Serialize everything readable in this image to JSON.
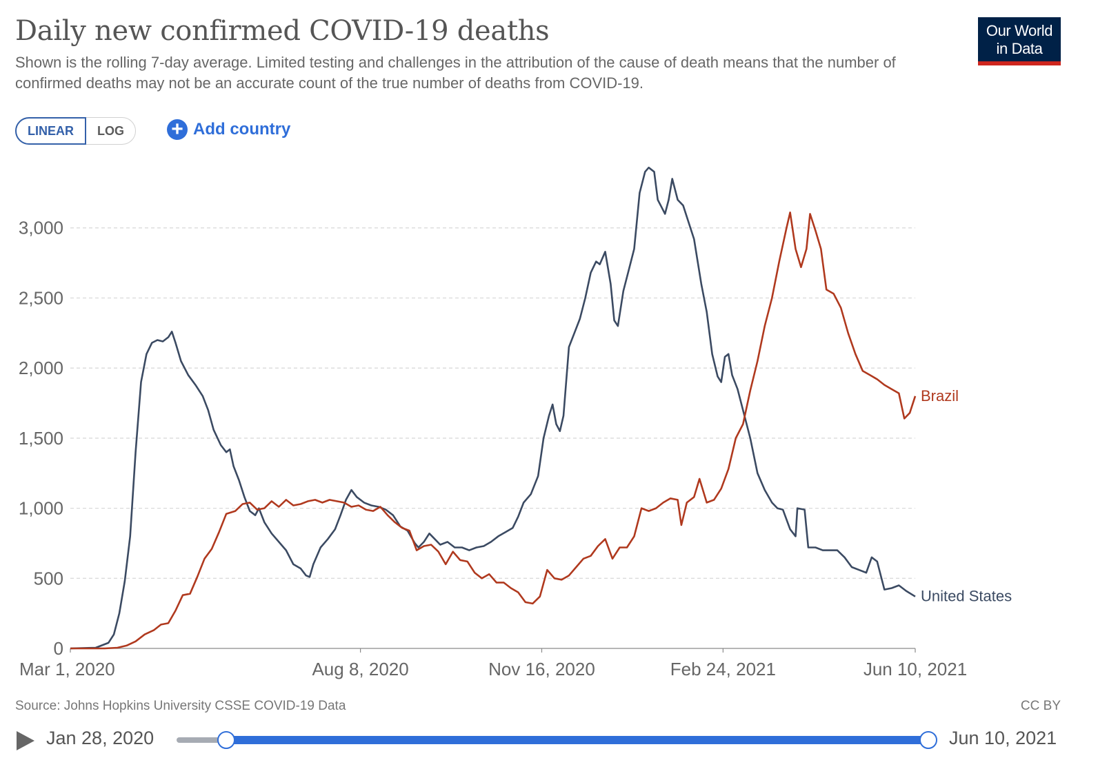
{
  "header": {
    "title": "Daily new confirmed COVID-19 deaths",
    "subtitle": "Shown is the rolling 7-day average. Limited testing and challenges in the attribution of the cause of death means that the number of confirmed deaths may not be an accurate count of the true number of deaths from COVID-19.",
    "logo_line1": "Our World",
    "logo_line2": "in Data",
    "logo_colors": {
      "background": "#002147",
      "accent": "#ce261e"
    }
  },
  "controls": {
    "scale_options": [
      "LINEAR",
      "LOG"
    ],
    "scale_selected": "LINEAR",
    "add_country_label": "Add country",
    "add_country_icon": "plus-circle-icon"
  },
  "chart_data": {
    "type": "line",
    "title": "Daily new confirmed COVID-19 deaths",
    "xlabel": "",
    "ylabel": "",
    "ylim": [
      0,
      3500
    ],
    "y_ticks": [
      0,
      500,
      1000,
      1500,
      2000,
      2500,
      3000
    ],
    "y_tick_labels": [
      "0",
      "500",
      "1,000",
      "1,500",
      "2,000",
      "2,500",
      "3,000"
    ],
    "x_range": [
      "2020-03-01",
      "2021-06-10"
    ],
    "x_tick_labels": [
      "Mar 1, 2020",
      "Aug 8, 2020",
      "Nov 16, 2020",
      "Feb 24, 2021",
      "Jun 10, 2021"
    ],
    "x_tick_dates": [
      "2020-03-01",
      "2020-08-08",
      "2020-11-16",
      "2021-02-24",
      "2021-06-10"
    ],
    "grid": "horizontal-dashed",
    "legend": "line-end-labels",
    "series": [
      {
        "name": "United States",
        "color": "#3b4a62",
        "points": [
          [
            "2020-03-01",
            0
          ],
          [
            "2020-03-15",
            5
          ],
          [
            "2020-03-22",
            40
          ],
          [
            "2020-03-25",
            100
          ],
          [
            "2020-03-28",
            250
          ],
          [
            "2020-03-31",
            480
          ],
          [
            "2020-04-03",
            800
          ],
          [
            "2020-04-06",
            1400
          ],
          [
            "2020-04-09",
            1900
          ],
          [
            "2020-04-12",
            2100
          ],
          [
            "2020-04-15",
            2180
          ],
          [
            "2020-04-18",
            2200
          ],
          [
            "2020-04-21",
            2190
          ],
          [
            "2020-04-24",
            2220
          ],
          [
            "2020-04-26",
            2260
          ],
          [
            "2020-04-28",
            2180
          ],
          [
            "2020-05-01",
            2050
          ],
          [
            "2020-05-05",
            1950
          ],
          [
            "2020-05-09",
            1880
          ],
          [
            "2020-05-13",
            1800
          ],
          [
            "2020-05-16",
            1700
          ],
          [
            "2020-05-19",
            1560
          ],
          [
            "2020-05-23",
            1450
          ],
          [
            "2020-05-26",
            1400
          ],
          [
            "2020-05-28",
            1420
          ],
          [
            "2020-05-30",
            1300
          ],
          [
            "2020-06-02",
            1200
          ],
          [
            "2020-06-05",
            1080
          ],
          [
            "2020-06-08",
            980
          ],
          [
            "2020-06-11",
            950
          ],
          [
            "2020-06-13",
            1000
          ],
          [
            "2020-06-16",
            900
          ],
          [
            "2020-06-20",
            820
          ],
          [
            "2020-06-24",
            760
          ],
          [
            "2020-06-28",
            700
          ],
          [
            "2020-07-02",
            600
          ],
          [
            "2020-07-06",
            570
          ],
          [
            "2020-07-09",
            520
          ],
          [
            "2020-07-11",
            510
          ],
          [
            "2020-07-13",
            600
          ],
          [
            "2020-07-17",
            720
          ],
          [
            "2020-07-21",
            780
          ],
          [
            "2020-07-25",
            850
          ],
          [
            "2020-07-28",
            950
          ],
          [
            "2020-07-31",
            1060
          ],
          [
            "2020-08-03",
            1130
          ],
          [
            "2020-08-06",
            1080
          ],
          [
            "2020-08-10",
            1040
          ],
          [
            "2020-08-14",
            1020
          ],
          [
            "2020-08-18",
            1010
          ],
          [
            "2020-08-22",
            990
          ],
          [
            "2020-08-26",
            950
          ],
          [
            "2020-08-30",
            870
          ],
          [
            "2020-09-03",
            840
          ],
          [
            "2020-09-07",
            750
          ],
          [
            "2020-09-09",
            720
          ],
          [
            "2020-09-12",
            760
          ],
          [
            "2020-09-15",
            820
          ],
          [
            "2020-09-18",
            780
          ],
          [
            "2020-09-21",
            740
          ],
          [
            "2020-09-25",
            760
          ],
          [
            "2020-09-29",
            720
          ],
          [
            "2020-10-03",
            720
          ],
          [
            "2020-10-07",
            700
          ],
          [
            "2020-10-11",
            720
          ],
          [
            "2020-10-15",
            730
          ],
          [
            "2020-10-19",
            760
          ],
          [
            "2020-10-23",
            800
          ],
          [
            "2020-10-27",
            830
          ],
          [
            "2020-10-31",
            860
          ],
          [
            "2020-11-03",
            940
          ],
          [
            "2020-11-06",
            1040
          ],
          [
            "2020-11-10",
            1100
          ],
          [
            "2020-11-14",
            1230
          ],
          [
            "2020-11-17",
            1500
          ],
          [
            "2020-11-20",
            1660
          ],
          [
            "2020-11-22",
            1740
          ],
          [
            "2020-11-24",
            1600
          ],
          [
            "2020-11-26",
            1550
          ],
          [
            "2020-11-28",
            1660
          ],
          [
            "2020-12-01",
            2150
          ],
          [
            "2020-12-04",
            2250
          ],
          [
            "2020-12-07",
            2350
          ],
          [
            "2020-12-10",
            2500
          ],
          [
            "2020-12-13",
            2680
          ],
          [
            "2020-12-16",
            2760
          ],
          [
            "2020-12-18",
            2740
          ],
          [
            "2020-12-21",
            2830
          ],
          [
            "2020-12-24",
            2600
          ],
          [
            "2020-12-26",
            2340
          ],
          [
            "2020-12-28",
            2300
          ],
          [
            "2020-12-31",
            2550
          ],
          [
            "2021-01-03",
            2700
          ],
          [
            "2021-01-06",
            2850
          ],
          [
            "2021-01-09",
            3250
          ],
          [
            "2021-01-12",
            3400
          ],
          [
            "2021-01-14",
            3430
          ],
          [
            "2021-01-17",
            3400
          ],
          [
            "2021-01-19",
            3200
          ],
          [
            "2021-01-21",
            3150
          ],
          [
            "2021-01-23",
            3100
          ],
          [
            "2021-01-25",
            3200
          ],
          [
            "2021-01-27",
            3350
          ],
          [
            "2021-01-30",
            3200
          ],
          [
            "2021-02-02",
            3160
          ],
          [
            "2021-02-05",
            3040
          ],
          [
            "2021-02-08",
            2920
          ],
          [
            "2021-02-12",
            2600
          ],
          [
            "2021-02-15",
            2400
          ],
          [
            "2021-02-18",
            2100
          ],
          [
            "2021-02-21",
            1940
          ],
          [
            "2021-02-23",
            1900
          ],
          [
            "2021-02-25",
            2080
          ],
          [
            "2021-02-27",
            2100
          ],
          [
            "2021-03-01",
            1950
          ],
          [
            "2021-03-04",
            1850
          ],
          [
            "2021-03-08",
            1650
          ],
          [
            "2021-03-11",
            1500
          ],
          [
            "2021-03-15",
            1250
          ],
          [
            "2021-03-19",
            1130
          ],
          [
            "2021-03-23",
            1040
          ],
          [
            "2021-03-26",
            1000
          ],
          [
            "2021-03-29",
            990
          ],
          [
            "2021-04-02",
            850
          ],
          [
            "2021-04-05",
            800
          ],
          [
            "2021-04-06",
            1000
          ],
          [
            "2021-04-10",
            990
          ],
          [
            "2021-04-12",
            720
          ],
          [
            "2021-04-16",
            720
          ],
          [
            "2021-04-20",
            700
          ],
          [
            "2021-04-24",
            700
          ],
          [
            "2021-04-28",
            700
          ],
          [
            "2021-05-02",
            650
          ],
          [
            "2021-05-06",
            580
          ],
          [
            "2021-05-10",
            560
          ],
          [
            "2021-05-14",
            540
          ],
          [
            "2021-05-17",
            650
          ],
          [
            "2021-05-20",
            620
          ],
          [
            "2021-05-24",
            420
          ],
          [
            "2021-05-28",
            430
          ],
          [
            "2021-06-01",
            450
          ],
          [
            "2021-06-05",
            410
          ],
          [
            "2021-06-10",
            370
          ]
        ]
      },
      {
        "name": "Brazil",
        "color": "#b0391e",
        "points": [
          [
            "2020-03-01",
            0
          ],
          [
            "2020-03-20",
            0
          ],
          [
            "2020-03-27",
            5
          ],
          [
            "2020-04-01",
            20
          ],
          [
            "2020-04-06",
            50
          ],
          [
            "2020-04-11",
            100
          ],
          [
            "2020-04-16",
            130
          ],
          [
            "2020-04-20",
            170
          ],
          [
            "2020-04-24",
            180
          ],
          [
            "2020-04-28",
            270
          ],
          [
            "2020-05-02",
            380
          ],
          [
            "2020-05-06",
            390
          ],
          [
            "2020-05-10",
            510
          ],
          [
            "2020-05-14",
            640
          ],
          [
            "2020-05-18",
            710
          ],
          [
            "2020-05-22",
            830
          ],
          [
            "2020-05-26",
            960
          ],
          [
            "2020-05-31",
            980
          ],
          [
            "2020-06-04",
            1030
          ],
          [
            "2020-06-08",
            1040
          ],
          [
            "2020-06-12",
            990
          ],
          [
            "2020-06-16",
            1000
          ],
          [
            "2020-06-20",
            1050
          ],
          [
            "2020-06-24",
            1010
          ],
          [
            "2020-06-28",
            1060
          ],
          [
            "2020-07-02",
            1020
          ],
          [
            "2020-07-06",
            1030
          ],
          [
            "2020-07-10",
            1050
          ],
          [
            "2020-07-14",
            1060
          ],
          [
            "2020-07-18",
            1040
          ],
          [
            "2020-07-22",
            1060
          ],
          [
            "2020-07-26",
            1050
          ],
          [
            "2020-07-30",
            1040
          ],
          [
            "2020-08-03",
            1010
          ],
          [
            "2020-08-07",
            1020
          ],
          [
            "2020-08-11",
            990
          ],
          [
            "2020-08-15",
            980
          ],
          [
            "2020-08-19",
            1010
          ],
          [
            "2020-08-23",
            950
          ],
          [
            "2020-08-27",
            900
          ],
          [
            "2020-08-31",
            860
          ],
          [
            "2020-09-04",
            840
          ],
          [
            "2020-09-08",
            700
          ],
          [
            "2020-09-12",
            730
          ],
          [
            "2020-09-16",
            740
          ],
          [
            "2020-09-20",
            690
          ],
          [
            "2020-09-24",
            600
          ],
          [
            "2020-09-28",
            690
          ],
          [
            "2020-10-02",
            630
          ],
          [
            "2020-10-06",
            620
          ],
          [
            "2020-10-10",
            540
          ],
          [
            "2020-10-14",
            500
          ],
          [
            "2020-10-18",
            530
          ],
          [
            "2020-10-22",
            470
          ],
          [
            "2020-10-26",
            470
          ],
          [
            "2020-10-30",
            430
          ],
          [
            "2020-11-03",
            400
          ],
          [
            "2020-11-07",
            330
          ],
          [
            "2020-11-11",
            320
          ],
          [
            "2020-11-15",
            370
          ],
          [
            "2020-11-19",
            560
          ],
          [
            "2020-11-23",
            500
          ],
          [
            "2020-11-27",
            490
          ],
          [
            "2020-12-01",
            520
          ],
          [
            "2020-12-05",
            580
          ],
          [
            "2020-12-09",
            640
          ],
          [
            "2020-12-13",
            660
          ],
          [
            "2020-12-17",
            730
          ],
          [
            "2020-12-21",
            780
          ],
          [
            "2020-12-25",
            640
          ],
          [
            "2020-12-29",
            720
          ],
          [
            "2021-01-02",
            720
          ],
          [
            "2021-01-06",
            800
          ],
          [
            "2021-01-10",
            1000
          ],
          [
            "2021-01-14",
            980
          ],
          [
            "2021-01-18",
            1000
          ],
          [
            "2021-01-22",
            1040
          ],
          [
            "2021-01-26",
            1070
          ],
          [
            "2021-01-30",
            1060
          ],
          [
            "2021-02-01",
            880
          ],
          [
            "2021-02-04",
            1040
          ],
          [
            "2021-02-08",
            1080
          ],
          [
            "2021-02-11",
            1210
          ],
          [
            "2021-02-15",
            1040
          ],
          [
            "2021-02-19",
            1060
          ],
          [
            "2021-02-23",
            1140
          ],
          [
            "2021-02-27",
            1280
          ],
          [
            "2021-03-03",
            1500
          ],
          [
            "2021-03-07",
            1600
          ],
          [
            "2021-03-11",
            1840
          ],
          [
            "2021-03-15",
            2050
          ],
          [
            "2021-03-19",
            2300
          ],
          [
            "2021-03-23",
            2500
          ],
          [
            "2021-03-27",
            2760
          ],
          [
            "2021-03-31",
            3000
          ],
          [
            "2021-04-02",
            3110
          ],
          [
            "2021-04-05",
            2850
          ],
          [
            "2021-04-08",
            2720
          ],
          [
            "2021-04-11",
            2850
          ],
          [
            "2021-04-13",
            3100
          ],
          [
            "2021-04-16",
            2980
          ],
          [
            "2021-04-19",
            2850
          ],
          [
            "2021-04-22",
            2560
          ],
          [
            "2021-04-26",
            2530
          ],
          [
            "2021-04-30",
            2430
          ],
          [
            "2021-05-04",
            2250
          ],
          [
            "2021-05-08",
            2100
          ],
          [
            "2021-05-12",
            1980
          ],
          [
            "2021-05-16",
            1950
          ],
          [
            "2021-05-20",
            1920
          ],
          [
            "2021-05-24",
            1880
          ],
          [
            "2021-05-28",
            1850
          ],
          [
            "2021-06-01",
            1820
          ],
          [
            "2021-06-04",
            1640
          ],
          [
            "2021-06-07",
            1680
          ],
          [
            "2021-06-10",
            1800
          ]
        ]
      }
    ]
  },
  "footer": {
    "source": "Source: Johns Hopkins University CSSE COVID-19 Data",
    "license": "CC BY"
  },
  "timeline": {
    "start_label": "Jan 28, 2020",
    "end_label": "Jun 10, 2021",
    "play_icon": "play-icon"
  }
}
